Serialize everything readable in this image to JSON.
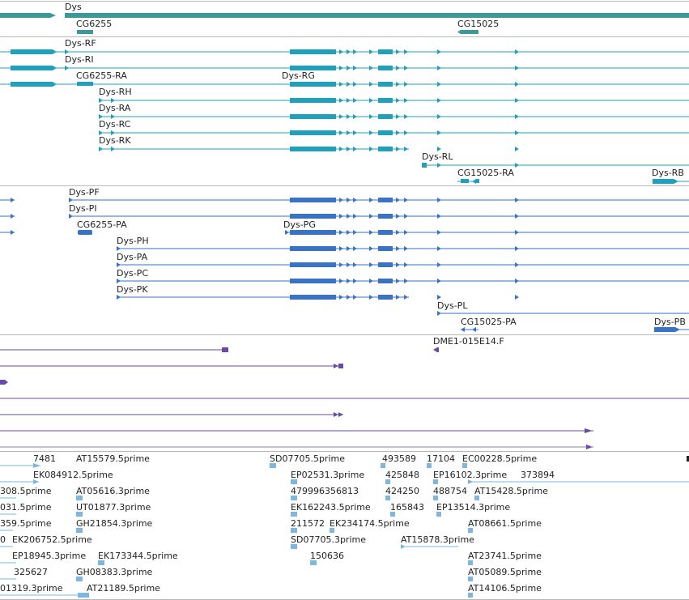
{
  "colors": {
    "gene": "#3a9a9a",
    "transcript": "#1fa0bd",
    "protein": "#3a72c4",
    "est_aln": "#6a4aa8",
    "est_aln_light": "#8e7cc0",
    "cdna": "#7fb7dc",
    "divider": "#b8b8b8",
    "label": "#222222"
  },
  "gene_track": {
    "features": [
      {
        "label": "Dys",
        "kind": "gene-bar"
      },
      {
        "label": "CG6255",
        "kind": "gene-small"
      },
      {
        "label": "CG15025",
        "kind": "gene-small"
      }
    ]
  },
  "transcript_track": {
    "labels": [
      "Dys-RF",
      "Dys-RI",
      "CG6255-RA",
      "Dys-RG",
      "Dys-RH",
      "Dys-RA",
      "Dys-RC",
      "Dys-RK",
      "Dys-RL",
      "CG15025-RA",
      "Dys-RB"
    ]
  },
  "protein_track": {
    "labels": [
      "Dys-PF",
      "Dys-PI",
      "CG6255-PA",
      "Dys-PG",
      "Dys-PH",
      "Dys-PA",
      "Dys-PC",
      "Dys-PK",
      "Dys-PL",
      "CG15025-PA",
      "Dys-PB"
    ]
  },
  "est_track": {
    "labels": [
      "DME1-015E14.F"
    ]
  },
  "cdna_track": {
    "labels": [
      "7481",
      "AT15579.5prime",
      "SD07705.5prime",
      "493589",
      "17104",
      "EC00228.5prime",
      "EK084912.5prime",
      "EP02531.3prime",
      "425848",
      "EP16102.3prime",
      "373894",
      "308.5prime",
      "AT05616.3prime",
      "479996356813",
      "424250",
      "488754",
      "AT15428.5prime",
      "031.5prime",
      "UT01877.3prime",
      "EK162243.5prime",
      "165843",
      "EP13514.3prime",
      "359.5prime",
      "GH21854.3prime",
      "211572",
      "EK234174.5prime",
      "AT08661.5prime",
      "0",
      "EK206752.5prime",
      "SD07705.3prime",
      "AT15878.3prime",
      "EP18945.3prime",
      "EK173344.5prime",
      "150636",
      "AT23741.5prime",
      "325627",
      "GH08383.3prime",
      "AT05089.5prime",
      "01319.3prime",
      "AT21189.5prime",
      "AT14106.5prime"
    ]
  }
}
